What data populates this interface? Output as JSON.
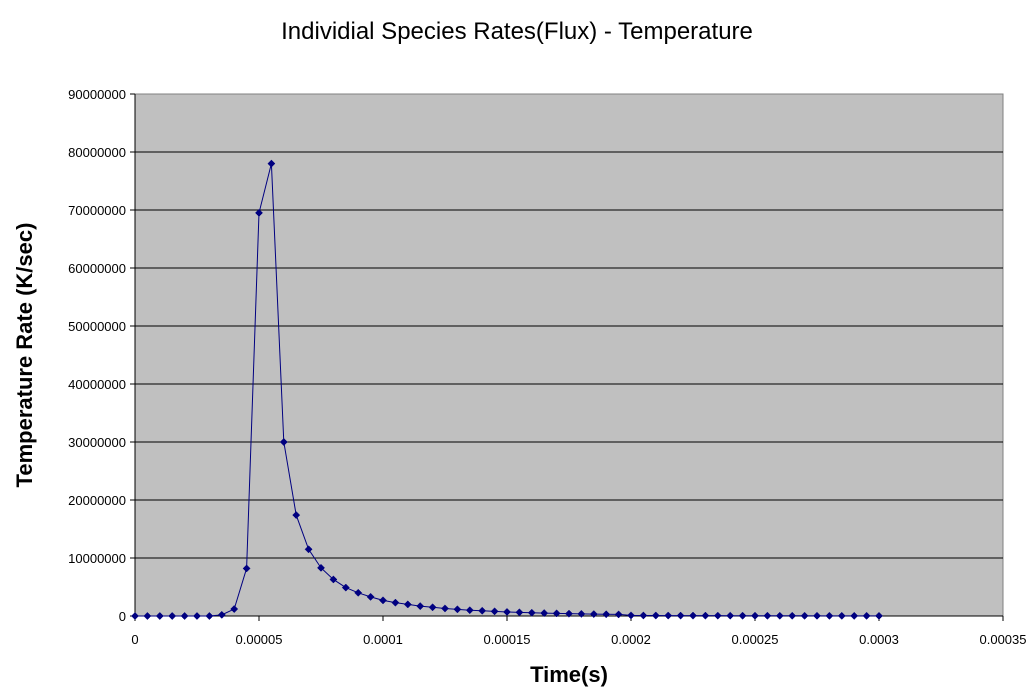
{
  "chart_data": {
    "type": "scatter",
    "title": "Individial Species Rates(Flux) - Temperature",
    "xlabel": "Time(s)",
    "ylabel": "Temperature Rate (K/sec)",
    "xlim": [
      0,
      0.00035
    ],
    "ylim": [
      0,
      90000000
    ],
    "x_ticks": [
      "0",
      "0.00005",
      "0.0001",
      "0.00015",
      "0.0002",
      "0.00025",
      "0.0003",
      "0.00035"
    ],
    "y_ticks": [
      "0",
      "10000000",
      "20000000",
      "30000000",
      "40000000",
      "50000000",
      "60000000",
      "70000000",
      "80000000",
      "90000000"
    ],
    "grid": true,
    "legend": "none",
    "colors": {
      "plot_background": "#c0c0c0",
      "series": "#000080",
      "gridline": "#000000"
    },
    "series": [
      {
        "x": [
          0,
          5e-06,
          1e-05,
          1.5e-05,
          2e-05,
          2.5e-05,
          3e-05,
          3.5e-05,
          4e-05,
          4.5e-05,
          5e-05,
          5.5e-05,
          6e-05,
          6.5e-05,
          7e-05,
          7.5e-05,
          8e-05,
          8.5e-05,
          9e-05,
          9.5e-05,
          0.0001,
          0.000105,
          0.00011,
          0.000115,
          0.00012,
          0.000125,
          0.00013,
          0.000135,
          0.00014,
          0.000145,
          0.00015,
          0.000155,
          0.00016,
          0.000165,
          0.00017,
          0.000175,
          0.00018,
          0.000185,
          0.00019,
          0.000195,
          0.0002,
          0.000205,
          0.00021,
          0.000215,
          0.00022,
          0.000225,
          0.00023,
          0.000235,
          0.00024,
          0.000245,
          0.00025,
          0.000255,
          0.00026,
          0.000265,
          0.00027,
          0.000275,
          0.00028,
          0.000285,
          0.00029,
          0.000295,
          0.0003
        ],
        "values": [
          0,
          0,
          0,
          0,
          0,
          0,
          0,
          200000,
          1200000,
          8200000,
          69500000,
          78000000,
          30000000,
          17400000,
          11500000,
          8300000,
          6300000,
          4900000,
          4000000,
          3300000,
          2700000,
          2300000,
          2000000,
          1700000,
          1500000,
          1300000,
          1150000,
          1000000,
          900000,
          800000,
          700000,
          630000,
          560000,
          500000,
          450000,
          400000,
          360000,
          330000,
          300000,
          270000,
          100000,
          90000,
          80000,
          75000,
          70000,
          65000,
          60000,
          55000,
          50000,
          45000,
          40000,
          38000,
          36000,
          34000,
          32000,
          30000,
          28000,
          26000,
          24000,
          22000,
          20000
        ]
      }
    ]
  }
}
